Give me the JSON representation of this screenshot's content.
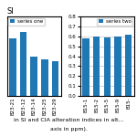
{
  "chart_data": [
    {
      "type": "bar",
      "title": "SI",
      "categories": [
        "B23-21",
        "B23-12",
        "B23-14",
        "B23-25",
        "B23-29"
      ],
      "series": [
        {
          "name": "series one",
          "values": [
            0.72,
            0.8,
            0.5,
            0.46,
            0.44
          ]
        }
      ],
      "ylim": [
        0,
        1.0
      ],
      "tick_labels": "x",
      "legend": "upper left"
    },
    {
      "type": "bar",
      "categories": [
        "B15-1",
        "B15-2",
        "B15-5",
        "B15-9",
        "B15-"
      ],
      "series": [
        {
          "name": "series two",
          "values": [
            0.58,
            0.6,
            0.59,
            0.6,
            0.62
          ]
        }
      ],
      "ylim": [
        0,
        0.8
      ],
      "yticks": [
        0.0,
        0.1,
        0.2,
        0.3,
        0.4,
        0.5,
        0.6,
        0.7,
        0.8
      ],
      "grid": true,
      "legend": "upper right"
    }
  ],
  "caption": [
    "in SI and CIA alteration indices in alt...",
    "axis in ppm)."
  ]
}
